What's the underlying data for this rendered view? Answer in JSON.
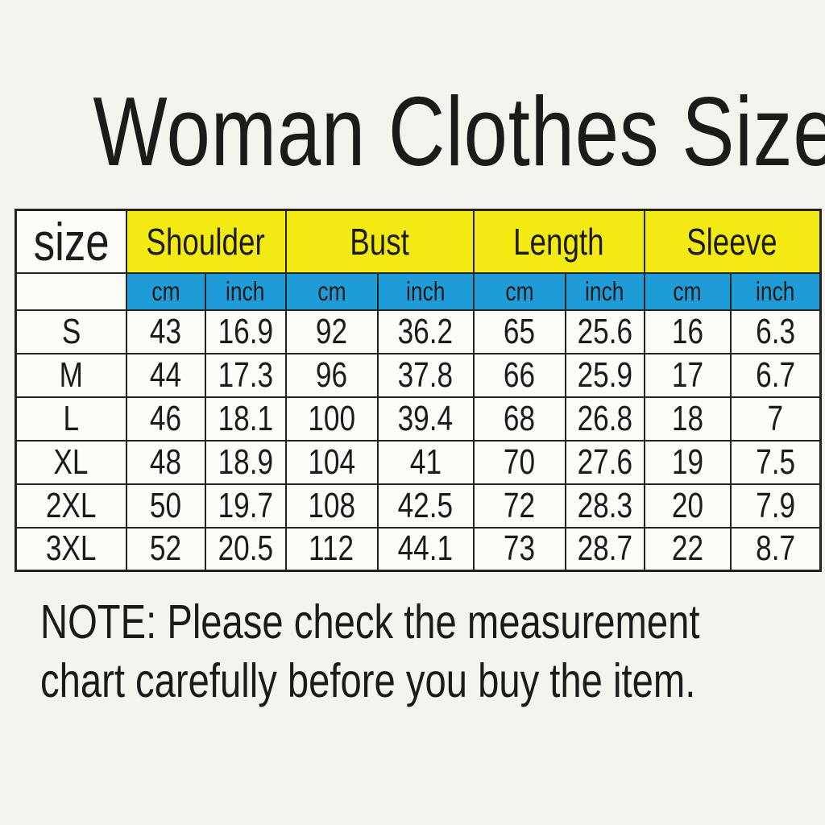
{
  "title": "Woman Clothes Size",
  "colors": {
    "background": "#f5f3ee",
    "header_yellow": "#f3e913",
    "unit_blue": "#1e9cd7",
    "text": "#1d1b19"
  },
  "table": {
    "size_header": "size",
    "groups": [
      "Shoulder",
      "Bust",
      "Length",
      "Sleeve"
    ],
    "unit_cm": "cm",
    "unit_inch": "inch",
    "rows": [
      {
        "size": "S",
        "shoulder_cm": "43",
        "shoulder_inch": "16.9",
        "bust_cm": "92",
        "bust_inch": "36.2",
        "length_cm": "65",
        "length_inch": "25.6",
        "sleeve_cm": "16",
        "sleeve_inch": "6.3"
      },
      {
        "size": "M",
        "shoulder_cm": "44",
        "shoulder_inch": "17.3",
        "bust_cm": "96",
        "bust_inch": "37.8",
        "length_cm": "66",
        "length_inch": "25.9",
        "sleeve_cm": "17",
        "sleeve_inch": "6.7"
      },
      {
        "size": "L",
        "shoulder_cm": "46",
        "shoulder_inch": "18.1",
        "bust_cm": "100",
        "bust_inch": "39.4",
        "length_cm": "68",
        "length_inch": "26.8",
        "sleeve_cm": "18",
        "sleeve_inch": "7"
      },
      {
        "size": "XL",
        "shoulder_cm": "48",
        "shoulder_inch": "18.9",
        "bust_cm": "104",
        "bust_inch": "41",
        "length_cm": "70",
        "length_inch": "27.6",
        "sleeve_cm": "19",
        "sleeve_inch": "7.5"
      },
      {
        "size": "2XL",
        "shoulder_cm": "50",
        "shoulder_inch": "19.7",
        "bust_cm": "108",
        "bust_inch": "42.5",
        "length_cm": "72",
        "length_inch": "28.3",
        "sleeve_cm": "20",
        "sleeve_inch": "7.9"
      },
      {
        "size": "3XL",
        "shoulder_cm": "52",
        "shoulder_inch": "20.5",
        "bust_cm": "112",
        "bust_inch": "44.1",
        "length_cm": "73",
        "length_inch": "28.7",
        "sleeve_cm": "22",
        "sleeve_inch": "8.7"
      }
    ]
  },
  "note": {
    "line1": "NOTE: Please check the measurement",
    "line2": "chart carefully  before you buy the item."
  },
  "chart_data": {
    "type": "table",
    "title": "Woman Clothes Size",
    "column_groups": [
      "Shoulder",
      "Bust",
      "Length",
      "Sleeve"
    ],
    "units_per_group": [
      "cm",
      "inch"
    ],
    "columns": [
      "size",
      "Shoulder cm",
      "Shoulder inch",
      "Bust cm",
      "Bust inch",
      "Length cm",
      "Length inch",
      "Sleeve cm",
      "Sleeve inch"
    ],
    "rows": [
      [
        "S",
        43,
        16.9,
        92,
        36.2,
        65,
        25.6,
        16,
        6.3
      ],
      [
        "M",
        44,
        17.3,
        96,
        37.8,
        66,
        25.9,
        17,
        6.7
      ],
      [
        "L",
        46,
        18.1,
        100,
        39.4,
        68,
        26.8,
        18,
        7
      ],
      [
        "XL",
        48,
        18.9,
        104,
        41,
        70,
        27.6,
        19,
        7.5
      ],
      [
        "2XL",
        50,
        19.7,
        108,
        42.5,
        72,
        28.3,
        20,
        7.9
      ],
      [
        "3XL",
        52,
        20.5,
        112,
        44.1,
        73,
        28.7,
        22,
        8.7
      ]
    ],
    "note": "NOTE: Please check the measurement chart carefully  before you buy the item."
  }
}
